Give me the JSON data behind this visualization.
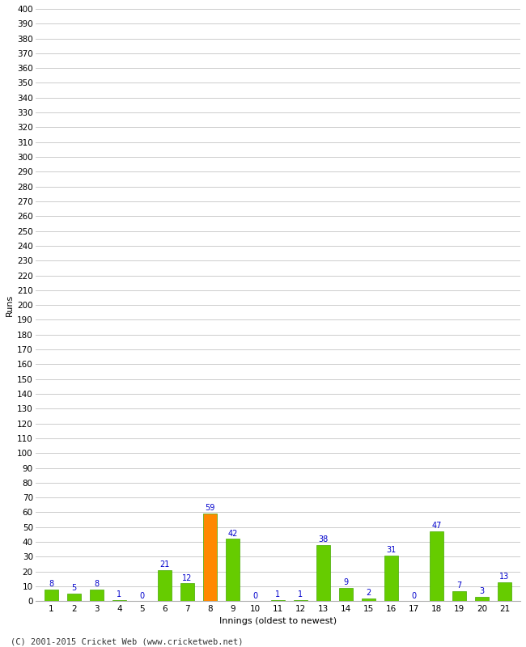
{
  "innings": [
    1,
    2,
    3,
    4,
    5,
    6,
    7,
    8,
    9,
    10,
    11,
    12,
    13,
    14,
    15,
    16,
    17,
    18,
    19,
    20,
    21
  ],
  "runs": [
    8,
    5,
    8,
    1,
    0,
    21,
    12,
    59,
    42,
    0,
    1,
    1,
    38,
    9,
    2,
    31,
    0,
    47,
    7,
    3,
    13
  ],
  "bar_colors": [
    "#66cc00",
    "#66cc00",
    "#66cc00",
    "#66cc00",
    "#66cc00",
    "#66cc00",
    "#66cc00",
    "#ff8800",
    "#66cc00",
    "#66cc00",
    "#66cc00",
    "#66cc00",
    "#66cc00",
    "#66cc00",
    "#66cc00",
    "#66cc00",
    "#66cc00",
    "#66cc00",
    "#66cc00",
    "#66cc00",
    "#66cc00"
  ],
  "ylabel": "Runs",
  "xlabel": "Innings (oldest to newest)",
  "ylim": [
    0,
    400
  ],
  "ytick_step": 10,
  "footer": "(C) 2001-2015 Cricket Web (www.cricketweb.net)",
  "label_color": "#0000cc",
  "background_color": "#ffffff",
  "grid_color": "#cccccc",
  "bar_edge_color": "#44aa00",
  "spine_color": "#aaaaaa"
}
